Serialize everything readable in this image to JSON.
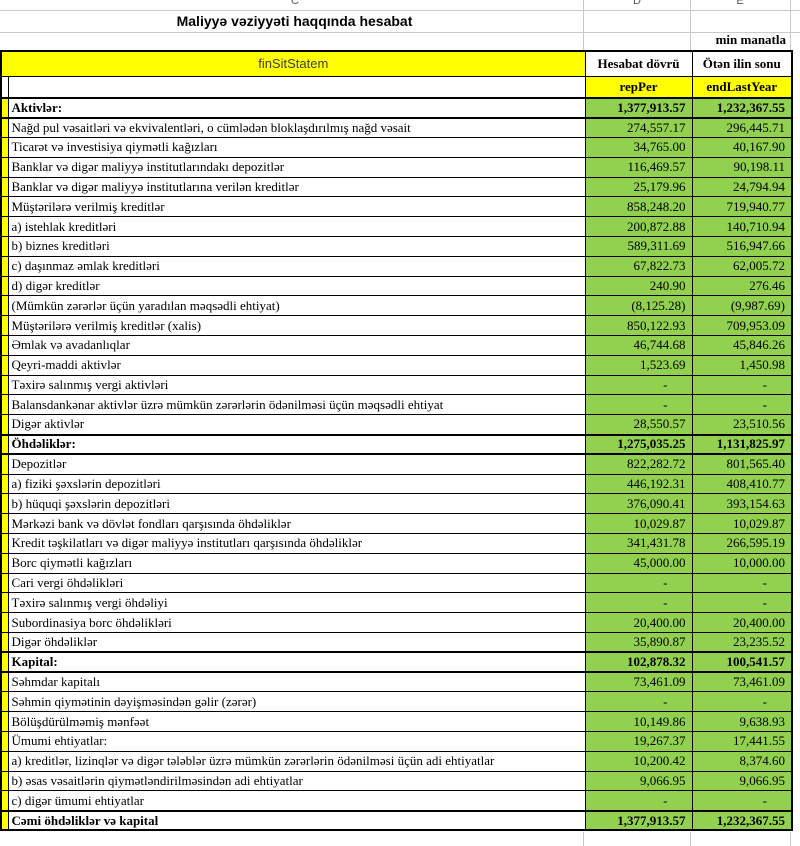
{
  "sheet": {
    "column_letters": {
      "c": "C",
      "d": "D",
      "e": "E"
    },
    "title": "Maliyyə vəziyyəti haqqında hesabat",
    "units_note": "min manatla",
    "colors": {
      "header_yellow": "#FFFF00",
      "value_green": "#92D050",
      "gridline_gray": "#c9c9c9"
    },
    "header": {
      "name_label": "finSitStatem",
      "col_reporting_period": "Hesabat dövrü",
      "col_end_last_year": "Ötən ilin sonu",
      "code_reporting_period": "repPer",
      "code_end_last_year": "endLastYear"
    },
    "rows": [
      {
        "label": "Aktivlər:",
        "d": "1,377,913.57",
        "e": "1,232,367.55",
        "bold": true
      },
      {
        "label": "Nağd pul vəsaitləri və ekvivalentləri, o cümlədən bloklaşdırılmış nağd vəsait",
        "d": "274,557.17",
        "e": "296,445.71"
      },
      {
        "label": "Ticarət və investisiya qiymətli kağızları",
        "d": "34,765.00",
        "e": "40,167.90"
      },
      {
        "label": "Banklar və digər maliyyə institutlarındakı depozitlər",
        "d": "116,469.57",
        "e": "90,198.11"
      },
      {
        "label": "Banklar və digər maliyyə institutlarına verilən kreditlər",
        "d": "25,179.96",
        "e": "24,794.94"
      },
      {
        "label": "Müştərilərə verilmiş kreditlər",
        "d": "858,248.20",
        "e": "719,940.77"
      },
      {
        "label": "a) istehlak kreditləri",
        "d": "200,872.88",
        "e": "140,710.94"
      },
      {
        "label": "b) biznes kreditləri",
        "d": "589,311.69",
        "e": "516,947.66"
      },
      {
        "label": "c) daşınmaz əmlak kreditləri",
        "d": "67,822.73",
        "e": "62,005.72"
      },
      {
        "label": "d) digər kreditlər",
        "d": "240.90",
        "e": "276.46"
      },
      {
        "label": "(Mümkün zərərlər üçün yaradılan məqsədli ehtiyat)",
        "d": "(8,125.28)",
        "e": "(9,987.69)"
      },
      {
        "label": "Müştərilərə verilmiş kreditlər (xalis)",
        "d": "850,122.93",
        "e": "709,953.09"
      },
      {
        "label": "Əmlak və avadanlıqlar",
        "d": "46,744.68",
        "e": "45,846.26"
      },
      {
        "label": "Qeyri-maddi aktivlər",
        "d": "1,523.69",
        "e": "1,450.98"
      },
      {
        "label": "Təxirə salınmış vergi aktivləri",
        "d": "-",
        "e": "-"
      },
      {
        "label": "Balansdankənar aktivlər üzrə mümkün zərərlərin ödənilməsi üçün məqsədli ehtiyat",
        "d": "-",
        "e": "-"
      },
      {
        "label": "Digər aktivlər",
        "d": "28,550.57",
        "e": "23,510.56"
      },
      {
        "label": "Öhdəliklər:",
        "d": "1,275,035.25",
        "e": "1,131,825.97",
        "bold": true
      },
      {
        "label": "Depozitlər",
        "d": "822,282.72",
        "e": "801,565.40"
      },
      {
        "label": "a) fiziki şəxslərin depozitləri",
        "d": "446,192.31",
        "e": "408,410.77"
      },
      {
        "label": "b) hüquqi şəxslərin depozitləri",
        "d": "376,090.41",
        "e": "393,154.63"
      },
      {
        "label": "Mərkəzi bank və dövlət fondları qarşısında öhdəliklər",
        "d": "10,029.87",
        "e": "10,029.87"
      },
      {
        "label": "Kredit təşkilatları və digər maliyyə institutları qarşısında öhdəliklər",
        "d": "341,431.78",
        "e": "266,595.19"
      },
      {
        "label": "Borc qiymətli kağızları",
        "d": "45,000.00",
        "e": "10,000.00"
      },
      {
        "label": "Cari vergi öhdəlikləri",
        "d": "-",
        "e": "-"
      },
      {
        "label": "Təxirə salınmış vergi öhdəliyi",
        "d": "-",
        "e": "-"
      },
      {
        "label": "Subordinasiya borc öhdəlikləri",
        "d": "20,400.00",
        "e": "20,400.00"
      },
      {
        "label": "Digər öhdəliklər",
        "d": "35,890.87",
        "e": "23,235.52"
      },
      {
        "label": "Kapital:",
        "d": "102,878.32",
        "e": "100,541.57",
        "bold": true
      },
      {
        "label": "Səhmdar kapitalı",
        "d": "73,461.09",
        "e": "73,461.09"
      },
      {
        "label": "Səhmin qiymətinin dəyişməsindən gəlir (zərər)",
        "d": "-",
        "e": "-"
      },
      {
        "label": "Bölüşdürülməmiş mənfəət",
        "d": "10,149.86",
        "e": "9,638.93"
      },
      {
        "label": "Ümumi ehtiyatlar:",
        "d": "19,267.37",
        "e": "17,441.55"
      },
      {
        "label": "a) kreditlər, lizinqlər və digər tələblər üzrə mümkün zərərlərin ödənilməsi üçün adi ehtiyatlar",
        "d": "10,200.42",
        "e": "8,374.60"
      },
      {
        "label": "b) əsas vəsaitlərin qiymətləndirilməsindən adi ehtiyatlar",
        "d": "9,066.95",
        "e": "9,066.95"
      },
      {
        "label": "c) digər ümumi ehtiyatlar",
        "d": "-",
        "e": "-"
      },
      {
        "label": "Cəmi öhdəliklər və kapital",
        "d": "1,377,913.57",
        "e": "1,232,367.55",
        "bold": true
      }
    ]
  }
}
